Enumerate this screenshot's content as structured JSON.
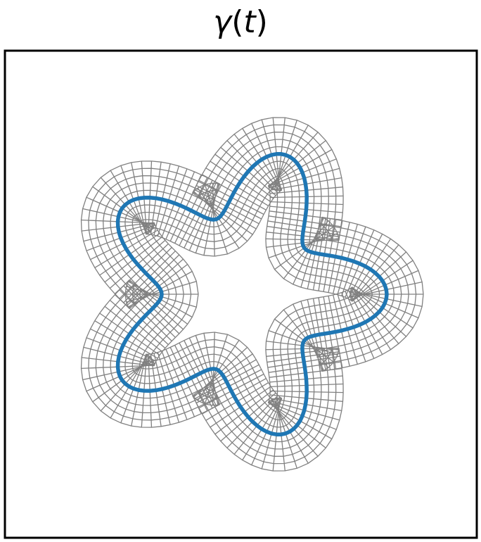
{
  "title": {
    "func": "γ",
    "open": "(",
    "var": "t",
    "close": ")"
  },
  "figure": {
    "petals": 5,
    "curve_color": "#1f77b4",
    "mesh_color": "#808080",
    "frame_color": "#000000"
  }
}
